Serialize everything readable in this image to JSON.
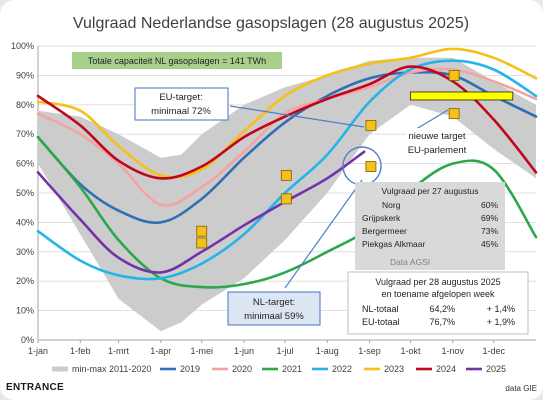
{
  "chart_data": {
    "type": "line",
    "title": "Vulgraad Nederlandse gasopslagen (28 augustus 2025)",
    "xlabel": "",
    "ylabel": "",
    "ylim": [
      0,
      100
    ],
    "y_ticks": [
      "0%",
      "10%",
      "20%",
      "30%",
      "40%",
      "50%",
      "60%",
      "70%",
      "80%",
      "90%",
      "100%"
    ],
    "x_ticks": [
      "1-jan",
      "1-feb",
      "1-mrt",
      "1-apr",
      "1-mei",
      "1-jun",
      "1-jul",
      "1-aug",
      "1-sep",
      "1-okt",
      "1-nov",
      "1-dec"
    ],
    "grid": true,
    "legend_position": "bottom",
    "band": {
      "name": "min-max 2011-2020",
      "color": "#cccccc",
      "x": [
        1,
        32,
        60,
        91,
        106,
        121,
        152,
        182,
        213,
        244,
        274,
        305,
        335,
        366
      ],
      "lower": [
        60,
        36,
        14,
        3,
        6,
        12,
        21,
        34,
        50,
        70,
        80,
        76,
        65,
        55
      ],
      "upper": [
        78,
        76,
        70,
        62,
        63,
        70,
        80,
        86,
        90,
        95,
        96,
        96,
        88,
        80
      ]
    },
    "series": [
      {
        "name": "2019",
        "color": "#2e6fb5",
        "x": [
          1,
          32,
          60,
          91,
          121,
          152,
          182,
          213,
          244,
          274,
          305,
          335,
          366
        ],
        "y": [
          69,
          53,
          44,
          40,
          48,
          62,
          74,
          83,
          89,
          91,
          90,
          83,
          76
        ]
      },
      {
        "name": "2020",
        "color": "#f4a3a3",
        "x": [
          1,
          32,
          60,
          91,
          121,
          152,
          182,
          213,
          244,
          274,
          305,
          335,
          366
        ],
        "y": [
          77,
          70,
          60,
          46,
          52,
          64,
          77,
          82,
          86,
          91,
          92,
          88,
          82
        ]
      },
      {
        "name": "2021",
        "color": "#2ca84a",
        "x": [
          1,
          32,
          60,
          91,
          121,
          152,
          182,
          213,
          244,
          274,
          305,
          335,
          366
        ],
        "y": [
          69,
          52,
          34,
          21,
          18,
          19,
          23,
          30,
          38,
          51,
          60,
          58,
          35
        ]
      },
      {
        "name": "2022",
        "color": "#25b4e8",
        "x": [
          1,
          32,
          60,
          91,
          121,
          152,
          182,
          213,
          244,
          274,
          305,
          335,
          366
        ],
        "y": [
          37,
          27,
          22,
          21,
          26,
          36,
          50,
          63,
          81,
          92,
          95,
          92,
          83
        ]
      },
      {
        "name": "2023",
        "color": "#f5c118",
        "x": [
          1,
          32,
          60,
          91,
          121,
          152,
          182,
          213,
          244,
          274,
          305,
          335,
          366
        ],
        "y": [
          81,
          78,
          66,
          56,
          58,
          71,
          83,
          90,
          94,
          96,
          99,
          96,
          89
        ]
      },
      {
        "name": "2024",
        "color": "#c0061d",
        "x": [
          1,
          32,
          60,
          91,
          121,
          152,
          182,
          213,
          244,
          274,
          305,
          335,
          366
        ],
        "y": [
          83,
          73,
          61,
          55,
          59,
          69,
          76,
          82,
          87,
          93,
          88,
          75,
          57
        ]
      },
      {
        "name": "2025",
        "color": "#7233a8",
        "x": [
          1,
          32,
          60,
          91,
          121,
          152,
          182,
          213,
          240
        ],
        "y": [
          57,
          41,
          28,
          23,
          30,
          39,
          47,
          55,
          64
        ]
      }
    ],
    "markers": [
      {
        "x": 121,
        "y": 37,
        "color": "#f5c118"
      },
      {
        "x": 121,
        "y": 33,
        "color": "#f5c118"
      },
      {
        "x": 183,
        "y": 56,
        "color": "#f5c118"
      },
      {
        "x": 183,
        "y": 48,
        "color": "#f5c118"
      },
      {
        "x": 245,
        "y": 73,
        "color": "#f5c118"
      },
      {
        "x": 245,
        "y": 59,
        "color": "#f5c118"
      },
      {
        "x": 306,
        "y": 90,
        "color": "#f5c118"
      },
      {
        "x": 306,
        "y": 77,
        "color": "#f5c118"
      }
    ],
    "target_bar": {
      "x_start": 274,
      "x_end": 349,
      "y": 83
    }
  },
  "annotations": {
    "capacity": "Totale capaciteit NL gasopslagen = 141 TWh",
    "eu_target_line1": "EU-target:",
    "eu_target_line2": "minimaal 72%",
    "nl_target_line1": "NL-target:",
    "nl_target_line2": "minimaal 59%",
    "new_target_line1": "nieuwe target",
    "new_target_line2": "EU-parlement"
  },
  "storage_box": {
    "title": "Vulgraad per 27 augustus",
    "rows": [
      {
        "name": "Norg",
        "value": "60%"
      },
      {
        "name": "Grijpskerk",
        "value": "69%"
      },
      {
        "name": "Bergermeer",
        "value": "73%"
      },
      {
        "name": "Piekgas Alkmaar",
        "value": "45%"
      }
    ],
    "source": "Data AGSI"
  },
  "totals_box": {
    "title_line1": "Vulgraad per 28 augustus 2025",
    "title_line2": "en toename afgelopen week",
    "rows": [
      {
        "label": "NL-totaal",
        "value": "64,2%",
        "change": "+ 1,4%"
      },
      {
        "label": "EU-totaal",
        "value": "76,7%",
        "change": "+ 1,9%"
      }
    ]
  },
  "footer": {
    "brand": "ENTRANCE",
    "source": "data GIE"
  }
}
